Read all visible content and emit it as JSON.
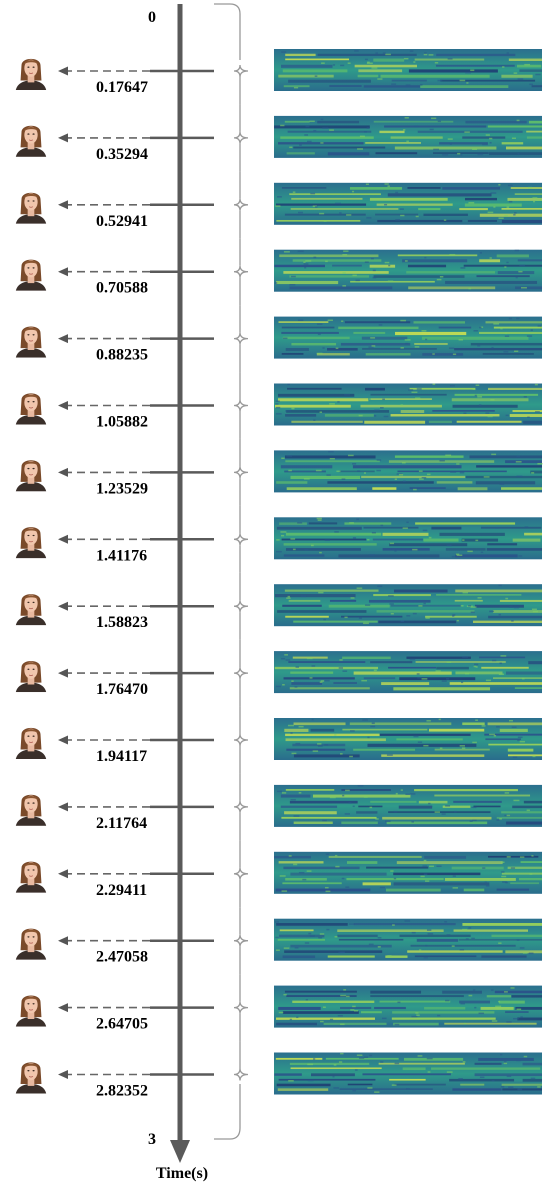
{
  "axis": {
    "start_label": "0",
    "end_label": "3",
    "title": "Time(s)",
    "start": 0,
    "end": 3
  },
  "timestamps": [
    "0.17647",
    "0.35294",
    "0.52941",
    "0.70588",
    "0.88235",
    "1.05882",
    "1.23529",
    "1.41176",
    "1.58823",
    "1.76470",
    "1.94117",
    "2.11764",
    "2.29411",
    "2.47058",
    "2.64705",
    "2.82352"
  ],
  "colors": {
    "axis": "#5a5a5a",
    "arrow_dash": "#666666",
    "brace": "#999999",
    "spec_dark": "#2b4f8a",
    "spec_mid": "#2e8f8a",
    "spec_light": "#5fbf6b",
    "spec_bright": "#c8df52"
  },
  "icons": {
    "face": "face-thumbnail-icon",
    "spectrogram": "spectrogram-image"
  }
}
